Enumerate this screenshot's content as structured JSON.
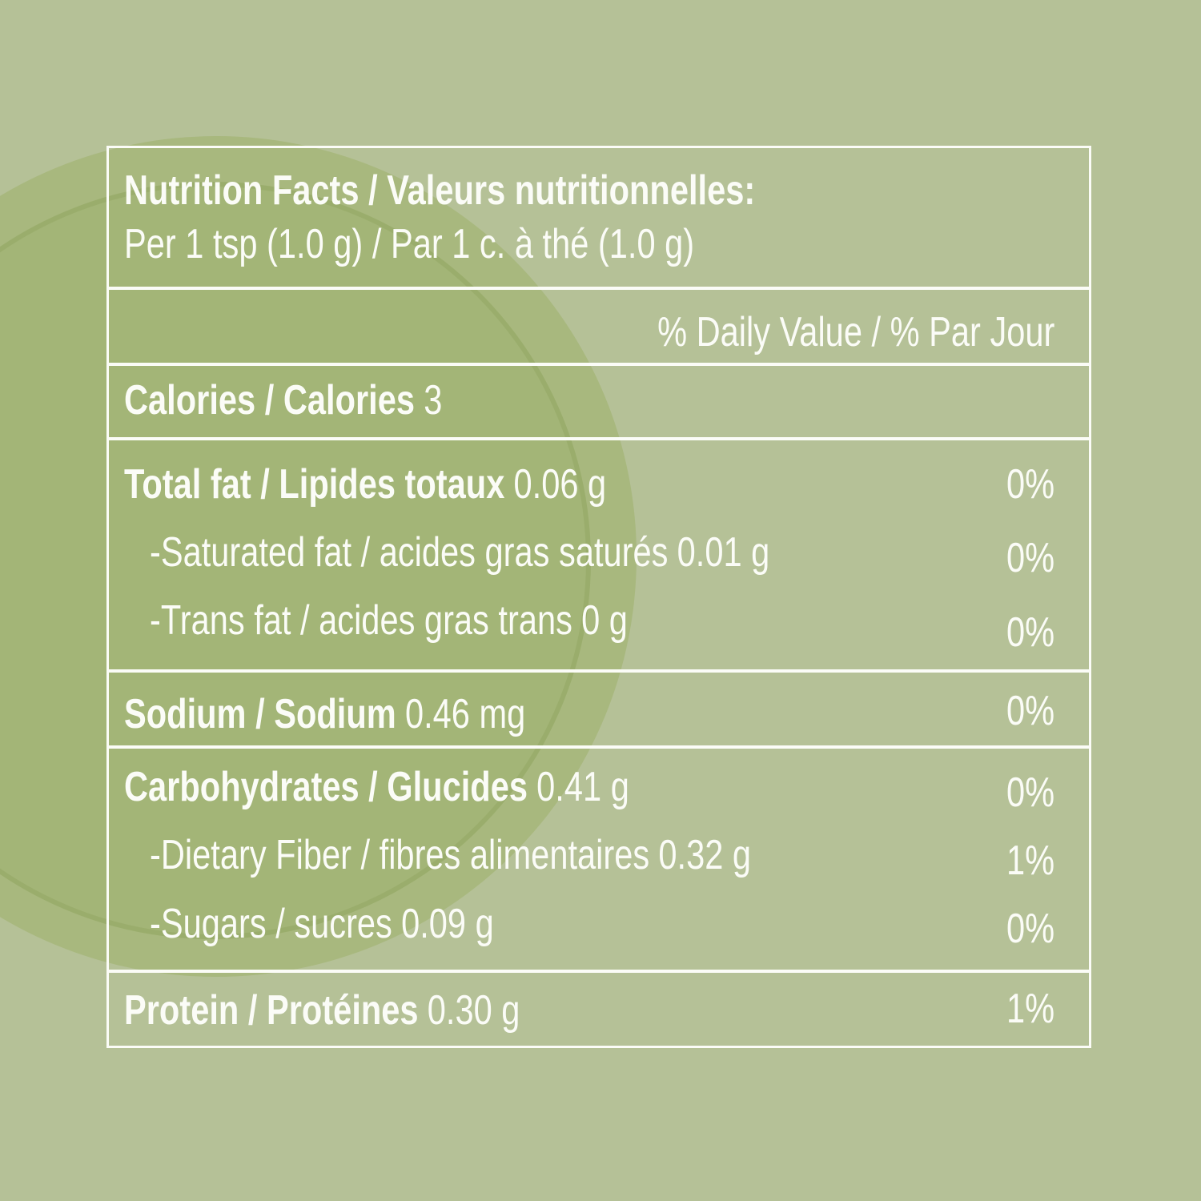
{
  "header": {
    "title": "Nutrition Facts / Valeurs nutritionnelles:",
    "serving": "Per 1 tsp (1.0 g) / Par 1 c. à thé (1.0 g)"
  },
  "daily_value_heading": "% Daily Value / % Par Jour",
  "sections": [
    {
      "main": {
        "name": "Calories / Calories",
        "amount": "3"
      }
    },
    {
      "main": {
        "name": "Total fat / Lipides totaux",
        "amount": "0.06 g",
        "dv": "0%"
      },
      "subrows": [
        {
          "name": "-Saturated fat / acides gras saturés",
          "amount": "0.01 g",
          "dv": "0%"
        },
        {
          "name": "-Trans fat / acides gras trans",
          "amount": "0 g",
          "dv": "0%"
        }
      ]
    },
    {
      "main": {
        "name": "Sodium / Sodium",
        "amount": "0.46 mg",
        "dv": "0%"
      }
    },
    {
      "main": {
        "name": "Carbohydrates / Glucides",
        "amount": "0.41 g",
        "dv": "0%"
      },
      "subrows": [
        {
          "name": "-Dietary Fiber / fibres alimentaires",
          "amount": "0.32 g",
          "dv": "1%"
        },
        {
          "name": "-Sugars / sucres",
          "amount": "0.09 g",
          "dv": "0%"
        }
      ]
    },
    {
      "main": {
        "name": "Protein / Protéines",
        "amount": "0.30 g",
        "dv": "1%"
      }
    }
  ]
}
